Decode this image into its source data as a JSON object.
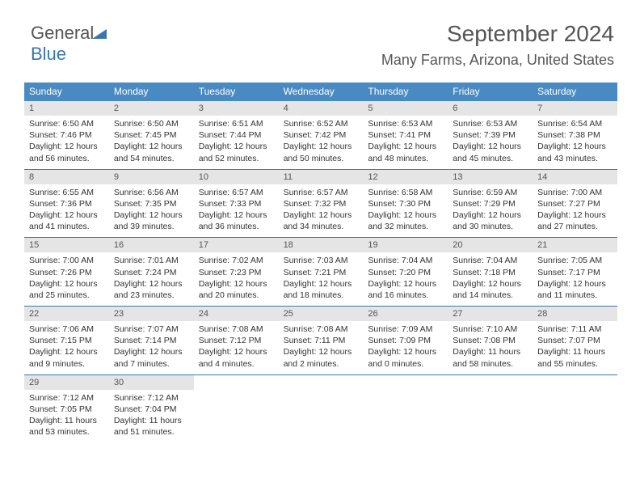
{
  "logo": {
    "part1": "General",
    "part2": "Blue"
  },
  "header": {
    "title": "September 2024",
    "location": "Many Farms, Arizona, United States"
  },
  "weekdays": [
    "Sunday",
    "Monday",
    "Tuesday",
    "Wednesday",
    "Thursday",
    "Friday",
    "Saturday"
  ],
  "colors": {
    "header_bg": "#4a8ac2",
    "header_text": "#ffffff",
    "daynum_bg": "#e5e5e5",
    "text": "#555555",
    "rule": "#3976b0"
  },
  "weeks": [
    [
      {
        "n": "1",
        "sr": "Sunrise: 6:50 AM",
        "ss": "Sunset: 7:46 PM",
        "dl": "Daylight: 12 hours and 56 minutes."
      },
      {
        "n": "2",
        "sr": "Sunrise: 6:50 AM",
        "ss": "Sunset: 7:45 PM",
        "dl": "Daylight: 12 hours and 54 minutes."
      },
      {
        "n": "3",
        "sr": "Sunrise: 6:51 AM",
        "ss": "Sunset: 7:44 PM",
        "dl": "Daylight: 12 hours and 52 minutes."
      },
      {
        "n": "4",
        "sr": "Sunrise: 6:52 AM",
        "ss": "Sunset: 7:42 PM",
        "dl": "Daylight: 12 hours and 50 minutes."
      },
      {
        "n": "5",
        "sr": "Sunrise: 6:53 AM",
        "ss": "Sunset: 7:41 PM",
        "dl": "Daylight: 12 hours and 48 minutes."
      },
      {
        "n": "6",
        "sr": "Sunrise: 6:53 AM",
        "ss": "Sunset: 7:39 PM",
        "dl": "Daylight: 12 hours and 45 minutes."
      },
      {
        "n": "7",
        "sr": "Sunrise: 6:54 AM",
        "ss": "Sunset: 7:38 PM",
        "dl": "Daylight: 12 hours and 43 minutes."
      }
    ],
    [
      {
        "n": "8",
        "sr": "Sunrise: 6:55 AM",
        "ss": "Sunset: 7:36 PM",
        "dl": "Daylight: 12 hours and 41 minutes."
      },
      {
        "n": "9",
        "sr": "Sunrise: 6:56 AM",
        "ss": "Sunset: 7:35 PM",
        "dl": "Daylight: 12 hours and 39 minutes."
      },
      {
        "n": "10",
        "sr": "Sunrise: 6:57 AM",
        "ss": "Sunset: 7:33 PM",
        "dl": "Daylight: 12 hours and 36 minutes."
      },
      {
        "n": "11",
        "sr": "Sunrise: 6:57 AM",
        "ss": "Sunset: 7:32 PM",
        "dl": "Daylight: 12 hours and 34 minutes."
      },
      {
        "n": "12",
        "sr": "Sunrise: 6:58 AM",
        "ss": "Sunset: 7:30 PM",
        "dl": "Daylight: 12 hours and 32 minutes."
      },
      {
        "n": "13",
        "sr": "Sunrise: 6:59 AM",
        "ss": "Sunset: 7:29 PM",
        "dl": "Daylight: 12 hours and 30 minutes."
      },
      {
        "n": "14",
        "sr": "Sunrise: 7:00 AM",
        "ss": "Sunset: 7:27 PM",
        "dl": "Daylight: 12 hours and 27 minutes."
      }
    ],
    [
      {
        "n": "15",
        "sr": "Sunrise: 7:00 AM",
        "ss": "Sunset: 7:26 PM",
        "dl": "Daylight: 12 hours and 25 minutes."
      },
      {
        "n": "16",
        "sr": "Sunrise: 7:01 AM",
        "ss": "Sunset: 7:24 PM",
        "dl": "Daylight: 12 hours and 23 minutes."
      },
      {
        "n": "17",
        "sr": "Sunrise: 7:02 AM",
        "ss": "Sunset: 7:23 PM",
        "dl": "Daylight: 12 hours and 20 minutes."
      },
      {
        "n": "18",
        "sr": "Sunrise: 7:03 AM",
        "ss": "Sunset: 7:21 PM",
        "dl": "Daylight: 12 hours and 18 minutes."
      },
      {
        "n": "19",
        "sr": "Sunrise: 7:04 AM",
        "ss": "Sunset: 7:20 PM",
        "dl": "Daylight: 12 hours and 16 minutes."
      },
      {
        "n": "20",
        "sr": "Sunrise: 7:04 AM",
        "ss": "Sunset: 7:18 PM",
        "dl": "Daylight: 12 hours and 14 minutes."
      },
      {
        "n": "21",
        "sr": "Sunrise: 7:05 AM",
        "ss": "Sunset: 7:17 PM",
        "dl": "Daylight: 12 hours and 11 minutes."
      }
    ],
    [
      {
        "n": "22",
        "sr": "Sunrise: 7:06 AM",
        "ss": "Sunset: 7:15 PM",
        "dl": "Daylight: 12 hours and 9 minutes."
      },
      {
        "n": "23",
        "sr": "Sunrise: 7:07 AM",
        "ss": "Sunset: 7:14 PM",
        "dl": "Daylight: 12 hours and 7 minutes."
      },
      {
        "n": "24",
        "sr": "Sunrise: 7:08 AM",
        "ss": "Sunset: 7:12 PM",
        "dl": "Daylight: 12 hours and 4 minutes."
      },
      {
        "n": "25",
        "sr": "Sunrise: 7:08 AM",
        "ss": "Sunset: 7:11 PM",
        "dl": "Daylight: 12 hours and 2 minutes."
      },
      {
        "n": "26",
        "sr": "Sunrise: 7:09 AM",
        "ss": "Sunset: 7:09 PM",
        "dl": "Daylight: 12 hours and 0 minutes."
      },
      {
        "n": "27",
        "sr": "Sunrise: 7:10 AM",
        "ss": "Sunset: 7:08 PM",
        "dl": "Daylight: 11 hours and 58 minutes."
      },
      {
        "n": "28",
        "sr": "Sunrise: 7:11 AM",
        "ss": "Sunset: 7:07 PM",
        "dl": "Daylight: 11 hours and 55 minutes."
      }
    ],
    [
      {
        "n": "29",
        "sr": "Sunrise: 7:12 AM",
        "ss": "Sunset: 7:05 PM",
        "dl": "Daylight: 11 hours and 53 minutes."
      },
      {
        "n": "30",
        "sr": "Sunrise: 7:12 AM",
        "ss": "Sunset: 7:04 PM",
        "dl": "Daylight: 11 hours and 51 minutes."
      },
      null,
      null,
      null,
      null,
      null
    ]
  ]
}
